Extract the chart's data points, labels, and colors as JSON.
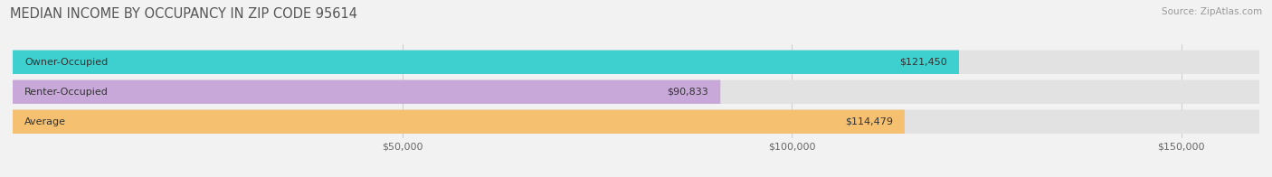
{
  "title": "MEDIAN INCOME BY OCCUPANCY IN ZIP CODE 95614",
  "source": "Source: ZipAtlas.com",
  "categories": [
    "Owner-Occupied",
    "Renter-Occupied",
    "Average"
  ],
  "values": [
    121450,
    90833,
    114479
  ],
  "labels": [
    "$121,450",
    "$90,833",
    "$114,479"
  ],
  "bar_colors": [
    "#3ecfcf",
    "#c8a8d8",
    "#f5c070"
  ],
  "background_color": "#f2f2f2",
  "bar_bg_color": "#e2e2e2",
  "xlim": [
    0,
    160000
  ],
  "xticks": [
    50000,
    100000,
    150000
  ],
  "xtick_labels": [
    "$50,000",
    "$100,000",
    "$150,000"
  ],
  "title_fontsize": 10.5,
  "label_fontsize": 8,
  "tick_fontsize": 8,
  "source_fontsize": 7.5
}
